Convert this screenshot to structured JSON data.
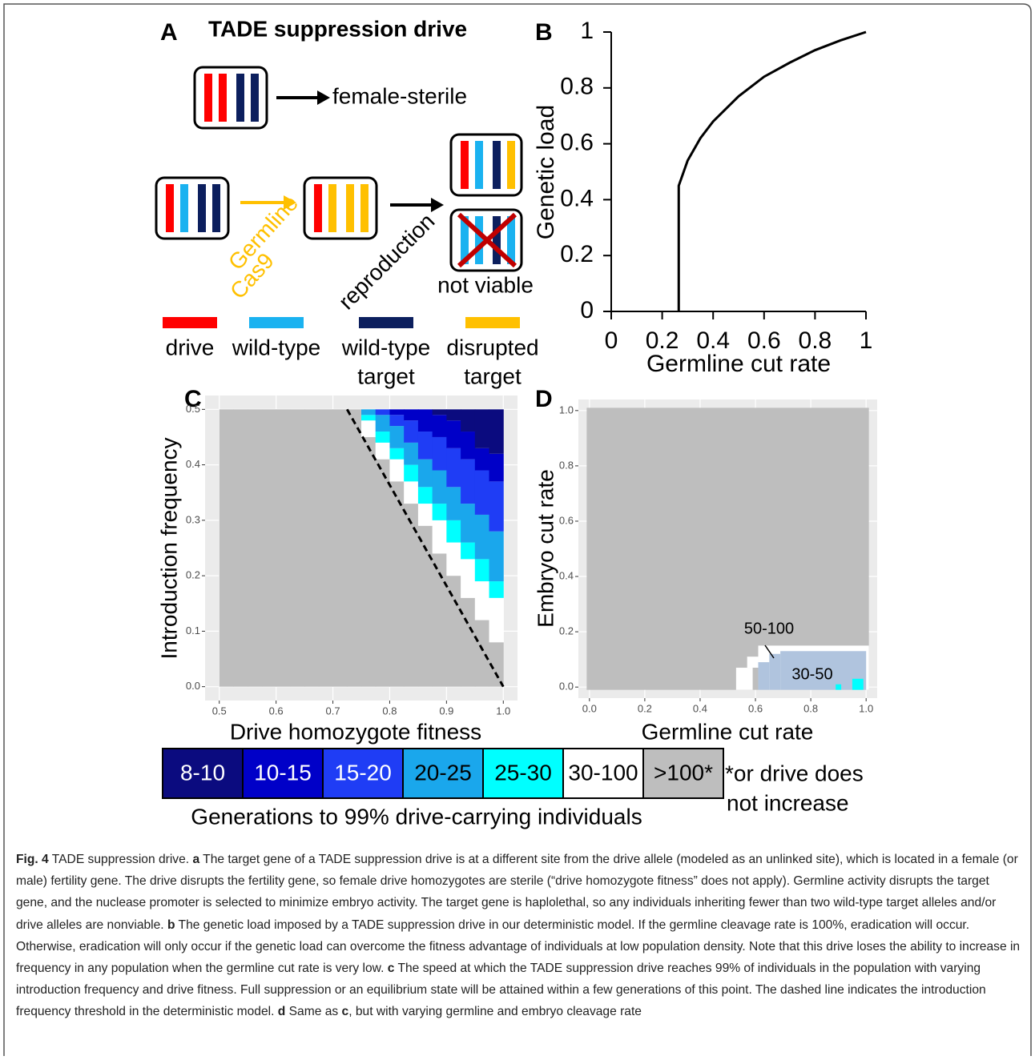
{
  "panel_a": {
    "letter": "A",
    "title": "TADE suppression drive",
    "female_sterile": "female-sterile",
    "germline": "Germline",
    "cas9": "Cas9",
    "reproduction": "reproduction",
    "not_viable": "not viable",
    "legend": [
      {
        "lines": [
          "drive"
        ],
        "color": "#ff0000"
      },
      {
        "lines": [
          "wild-type"
        ],
        "color": "#1ab2f0"
      },
      {
        "lines": [
          "wild-type",
          "target"
        ],
        "color": "#0c1f5e"
      },
      {
        "lines": [
          "disrupted",
          "target"
        ],
        "color": "#ffc000"
      }
    ]
  },
  "chart_data": [
    {
      "type": "line",
      "panel": "B",
      "xlabel": "Germline cut rate",
      "ylabel": "Genetic load",
      "x": [
        0.265,
        0.265,
        0.3,
        0.35,
        0.4,
        0.5,
        0.6,
        0.7,
        0.8,
        0.9,
        1.0
      ],
      "values": [
        0,
        0.45,
        0.54,
        0.62,
        0.68,
        0.77,
        0.84,
        0.89,
        0.935,
        0.97,
        1.0
      ],
      "color": "#000000",
      "xlim": [
        0,
        1
      ],
      "ylim": [
        0,
        1
      ],
      "xticks": [
        0,
        0.2,
        0.4,
        0.6,
        0.8,
        1
      ],
      "yticks": [
        0,
        0.2,
        0.4,
        0.6,
        0.8,
        1
      ]
    },
    {
      "type": "heatmap_columns",
      "panel": "C",
      "xlabel": "Drive homozygote fitness",
      "ylabel": "Introduction frequency",
      "x_bins": [
        0.5,
        0.525,
        0.55,
        0.575,
        0.6,
        0.625,
        0.65,
        0.675,
        0.7,
        0.725,
        0.75,
        0.775,
        0.8,
        0.825,
        0.85,
        0.875,
        0.9,
        0.925,
        0.95,
        0.975,
        1.0
      ],
      "y_extent": [
        0,
        0.5
      ],
      "series": [
        {
          "name": "8-10",
          "color": "#0b0b7f",
          "text_color": "#ffffff",
          "values": [
            null,
            null,
            null,
            null,
            null,
            null,
            null,
            null,
            null,
            null,
            null,
            null,
            null,
            null,
            null,
            0.49,
            0.48,
            0.46,
            0.43,
            0.42
          ]
        },
        {
          "name": "10-15",
          "color": "#0000c8",
          "text_color": "#ffffff",
          "values": [
            null,
            null,
            null,
            null,
            null,
            null,
            null,
            null,
            null,
            null,
            null,
            null,
            0.49,
            0.48,
            0.46,
            0.45,
            0.43,
            0.41,
            0.39,
            0.37
          ]
        },
        {
          "name": "15-20",
          "color": "#1f3df5",
          "text_color": "#ffffff",
          "values": [
            null,
            null,
            null,
            null,
            null,
            null,
            null,
            null,
            null,
            null,
            null,
            0.49,
            0.47,
            0.44,
            0.41,
            0.39,
            0.36,
            0.33,
            0.31,
            0.28
          ]
        },
        {
          "name": "20-25",
          "color": "#1aa7ec",
          "text_color": "#000000",
          "values": [
            null,
            null,
            null,
            null,
            null,
            null,
            null,
            null,
            null,
            null,
            0.49,
            0.46,
            0.43,
            0.4,
            0.36,
            0.33,
            0.3,
            0.26,
            0.23,
            0.19
          ]
        },
        {
          "name": "25-30",
          "color": "#00ffff",
          "text_color": "#000000",
          "values": [
            null,
            null,
            null,
            null,
            null,
            null,
            null,
            null,
            null,
            null,
            0.48,
            0.44,
            0.41,
            0.37,
            0.33,
            0.3,
            0.26,
            0.23,
            0.19,
            0.16
          ]
        },
        {
          "name": "30-100",
          "color": "#ffffff",
          "text_color": "#000000",
          "values": [
            null,
            null,
            null,
            null,
            null,
            null,
            null,
            null,
            null,
            null,
            0.45,
            0.41,
            0.37,
            0.33,
            0.29,
            0.24,
            0.2,
            0.16,
            0.12,
            0.08
          ]
        },
        {
          "name": ">100*",
          "color": "#bebebe",
          "text_color": "#000000",
          "values": [
            0,
            0,
            0,
            0,
            0,
            0,
            0,
            0,
            0,
            0,
            0,
            0,
            0,
            0,
            0,
            0,
            0,
            0,
            0,
            0
          ]
        }
      ],
      "threshold_line": {
        "x": [
          0.725,
          1.0
        ],
        "y": [
          0.5,
          0.0
        ],
        "color": "#000000"
      },
      "xlim": [
        0.475,
        1.025
      ],
      "ylim": [
        -0.025,
        0.525
      ],
      "xticks": [
        0.5,
        0.6,
        0.7,
        0.8,
        0.9,
        {
          "value": 1,
          "label": "1.0"
        }
      ],
      "yticks": [
        {
          "value": 0,
          "label": "0.0"
        },
        0.1,
        0.2,
        0.3,
        0.4,
        0.5
      ]
    },
    {
      "type": "heatmap_regions",
      "panel": "D",
      "xlabel": "Germline cut rate",
      "ylabel": "Embryo cut rate",
      "regions": [
        {
          "color": "#bebebe",
          "rects": [
            [
              -0.01,
              1.01,
              -0.01,
              1.01
            ]
          ]
        },
        {
          "color": "#ffffff",
          "label": "50-100",
          "rects": [
            [
              0.53,
              0.59,
              -0.01,
              0.07
            ],
            [
              0.57,
              0.61,
              0.07,
              0.11
            ],
            [
              0.61,
              1.01,
              -0.01,
              0.15
            ]
          ]
        },
        {
          "color": "#b0c4de",
          "label": "30-50",
          "rects": [
            [
              0.61,
              0.65,
              -0.01,
              0.09
            ],
            [
              0.65,
              0.69,
              -0.01,
              0.12
            ],
            [
              0.69,
              1.0,
              -0.01,
              0.13
            ]
          ]
        },
        {
          "color": "#00ffff",
          "rects": [
            [
              0.89,
              0.91,
              -0.01,
              0.01
            ],
            [
              0.95,
              0.99,
              -0.01,
              0.03
            ]
          ]
        }
      ],
      "xlim": [
        -0.04,
        1.04
      ],
      "ylim": [
        -0.04,
        1.04
      ],
      "xticks": [
        {
          "value": 0,
          "label": "0.0"
        },
        0.2,
        0.4,
        0.6,
        0.8,
        {
          "value": 1,
          "label": "1.0"
        }
      ],
      "yticks": [
        {
          "value": 0,
          "label": "0.0"
        },
        0.2,
        0.4,
        0.6,
        0.8,
        {
          "value": 1,
          "label": "1.0"
        }
      ]
    }
  ],
  "legend": {
    "title": "Generations to 99% drive-carrying individuals",
    "note": [
      "*or drive does",
      "not increase"
    ]
  },
  "caption": {
    "segments": [
      {
        "text": "Fig. 4",
        "bold": true
      },
      {
        "text": " TADE suppression drive. ",
        "bold": false
      },
      {
        "text": "a",
        "bold": true
      },
      {
        "text": " The target gene of a TADE suppression drive is at a different site from the drive allele (modeled as an unlinked site), which is located in a female (or male) fertility gene. The drive disrupts the fertility gene, so female drive homozygotes are sterile (“drive homozygote fitness” does not apply). Germline activity disrupts the target gene, and the nuclease promoter is selected to minimize embryo activity. The target gene is haplolethal, so any individuals inheriting fewer than two wild-type target alleles and/or drive alleles are nonviable. ",
        "bold": false
      },
      {
        "text": "b",
        "bold": true
      },
      {
        "text": " The genetic load imposed by a TADE suppression drive in our deterministic model. If the germline cleavage rate is 100%, eradication will occur. Otherwise, eradication will only occur if the genetic load can overcome the fitness advantage of individuals at low population density. Note that this drive loses the ability to increase in frequency in any population when the germline cut rate is very low. ",
        "bold": false
      },
      {
        "text": "c",
        "bold": true
      },
      {
        "text": " The speed at which the TADE suppression drive reaches 99% of individuals in the population with varying introduction frequency and drive fitness. Full suppression or an equilibrium state will be attained within a few generations of this point. The dashed line indicates the introduction frequency threshold in the deterministic model. ",
        "bold": false
      },
      {
        "text": "d",
        "bold": true
      },
      {
        "text": " Same as ",
        "bold": false
      },
      {
        "text": "c",
        "bold": true
      },
      {
        "text": ", but with varying germline and embryo cleavage rate",
        "bold": false
      }
    ]
  }
}
